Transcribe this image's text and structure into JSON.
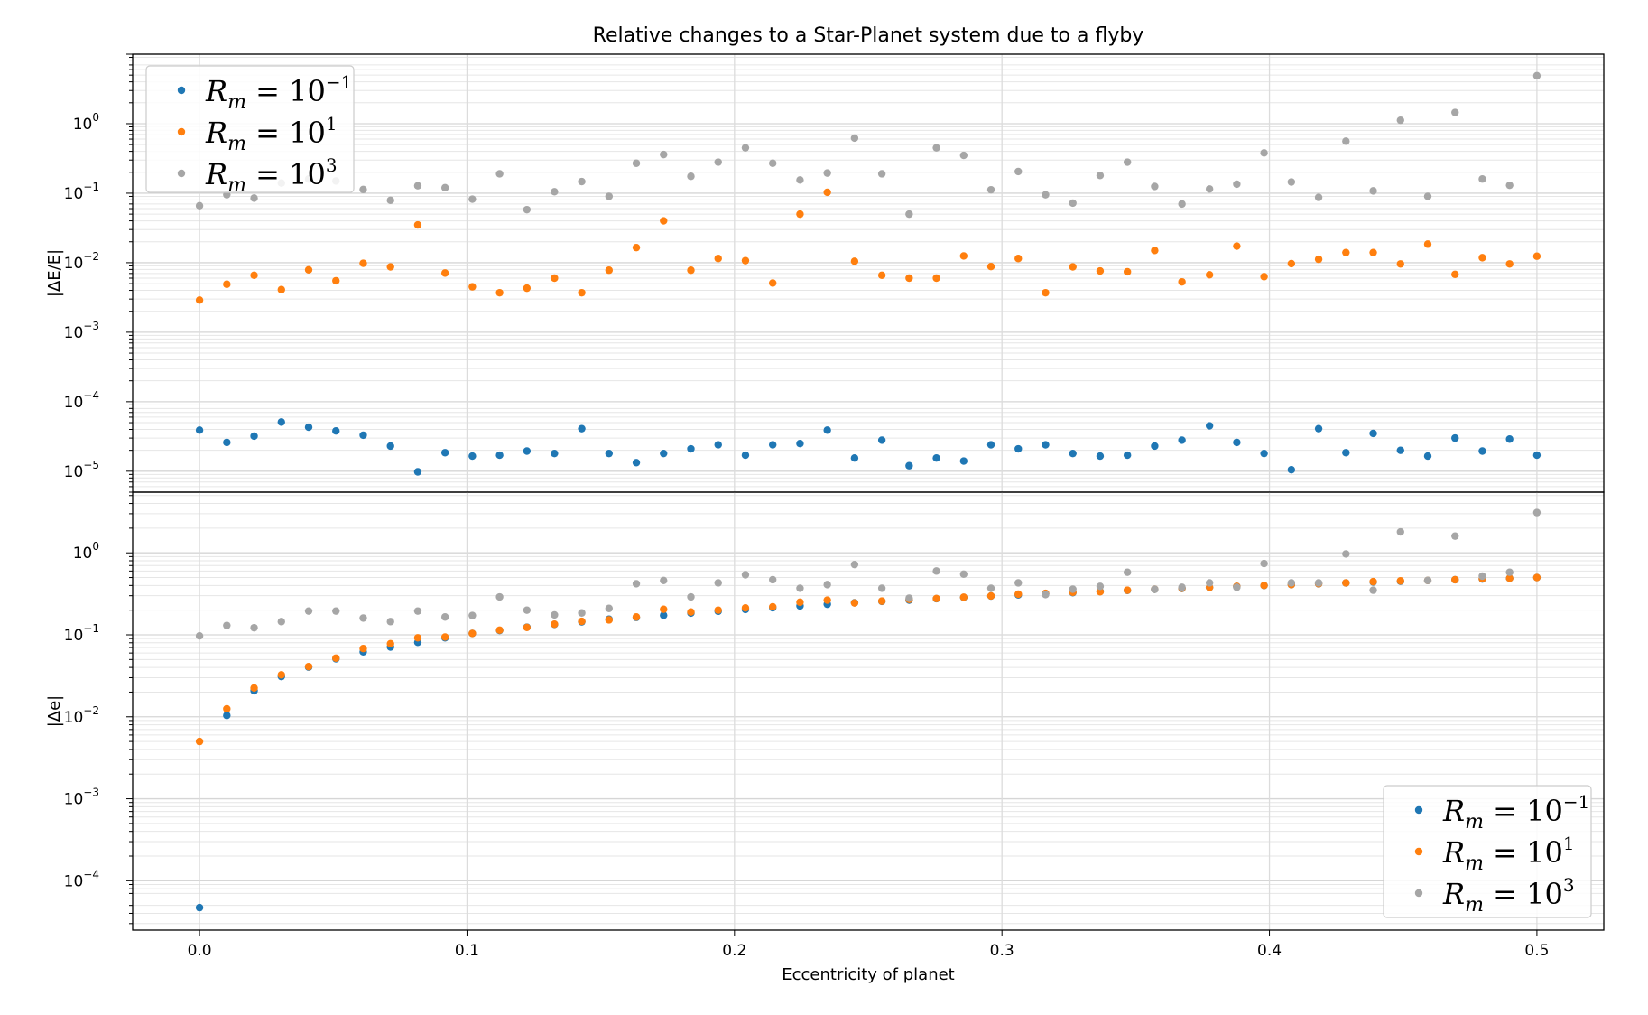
{
  "chart_data": {
    "type": "scatter",
    "title": "Relative changes to a Star-Planet system due to a flyby",
    "xlabel": "Eccentricity of planet",
    "xlim": [
      -0.025,
      0.525
    ],
    "xticks": [
      "0.0",
      "0.1",
      "0.2",
      "0.3",
      "0.4",
      "0.5"
    ],
    "x": [
      0.0,
      0.0102,
      0.0204,
      0.0306,
      0.0408,
      0.051,
      0.0612,
      0.0714,
      0.0816,
      0.0918,
      0.102,
      0.1122,
      0.1224,
      0.1327,
      0.1429,
      0.1531,
      0.1633,
      0.1735,
      0.1837,
      0.1939,
      0.2041,
      0.2143,
      0.2245,
      0.2347,
      0.2449,
      0.2551,
      0.2653,
      0.2755,
      0.2857,
      0.2959,
      0.3061,
      0.3163,
      0.3265,
      0.3367,
      0.3469,
      0.3571,
      0.3673,
      0.3776,
      0.3878,
      0.398,
      0.4082,
      0.4184,
      0.4286,
      0.4388,
      0.449,
      0.4592,
      0.4694,
      0.4796,
      0.4898,
      0.5
    ],
    "panels": [
      {
        "ylabel": "|ΔE/E|",
        "yscale": "log",
        "ylim": [
          5e-06,
          10
        ],
        "yticks": [
          {
            "base": "10",
            "exp": "−5"
          },
          {
            "base": "10",
            "exp": "−4"
          },
          {
            "base": "10",
            "exp": "−3"
          },
          {
            "base": "10",
            "exp": "−2"
          },
          {
            "base": "10",
            "exp": "−1"
          },
          {
            "base": "10",
            "exp": "0"
          }
        ],
        "legend_loc": "upper-left",
        "grid": true,
        "series": [
          {
            "name": "R_m = 10^-1",
            "color": "#1f77b4",
            "values": [
              3.9e-05,
              2.6e-05,
              3.2e-05,
              5.1e-05,
              4.3e-05,
              3.8e-05,
              3.3e-05,
              2.3e-05,
              9.8e-06,
              1.85e-05,
              1.65e-05,
              1.7e-05,
              1.95e-05,
              1.8e-05,
              4.1e-05,
              1.8e-05,
              1.33e-05,
              1.8e-05,
              2.1e-05,
              2.4e-05,
              1.7e-05,
              2.4e-05,
              2.5e-05,
              3.9e-05,
              1.55e-05,
              2.8e-05,
              1.2e-05,
              1.55e-05,
              1.4e-05,
              2.4e-05,
              2.1e-05,
              2.4e-05,
              1.8e-05,
              1.65e-05,
              1.7e-05,
              2.3e-05,
              2.8e-05,
              4.5e-05,
              2.6e-05,
              1.8e-05,
              1.05e-05,
              4.1e-05,
              1.85e-05,
              3.5e-05,
              2e-05,
              1.65e-05,
              3e-05,
              1.95e-05,
              2.9e-05,
              1.7e-05
            ]
          },
          {
            "name": "R_m = 10^1",
            "color": "#ff7f0e",
            "values": [
              0.0029,
              0.0049,
              0.0066,
              0.0041,
              0.0079,
              0.0055,
              0.0098,
              0.0087,
              0.035,
              0.0071,
              0.0045,
              0.0037,
              0.0043,
              0.006,
              0.0037,
              0.0078,
              0.0165,
              0.04,
              0.0078,
              0.0115,
              0.0107,
              0.0051,
              0.05,
              0.103,
              0.0105,
              0.0066,
              0.006,
              0.006,
              0.0125,
              0.0088,
              0.0115,
              0.0037,
              0.0087,
              0.0076,
              0.0074,
              0.015,
              0.0053,
              0.0067,
              0.0173,
              0.0063,
              0.0097,
              0.0112,
              0.014,
              0.014,
              0.0096,
              0.0185,
              0.0068,
              0.0118,
              0.0096,
              0.0124
            ]
          },
          {
            "name": "R_m = 10^3",
            "color": "#a6a6a6",
            "values": [
              0.066,
              0.095,
              0.085,
              0.14,
              0.16,
              0.15,
              0.113,
              0.079,
              0.128,
              0.12,
              0.082,
              0.19,
              0.058,
              0.105,
              0.147,
              0.09,
              0.27,
              0.36,
              0.175,
              0.28,
              0.45,
              0.27,
              0.155,
              0.195,
              0.62,
              0.19,
              0.05,
              0.45,
              0.35,
              0.112,
              0.205,
              0.095,
              0.072,
              0.18,
              0.28,
              0.125,
              0.07,
              0.115,
              0.135,
              0.38,
              0.145,
              0.087,
              0.56,
              0.108,
              1.12,
              0.09,
              1.45,
              0.16,
              0.13,
              4.9
            ]
          }
        ]
      },
      {
        "ylabel": "|Δe|",
        "yscale": "log",
        "ylim": [
          2.5e-05,
          5.5
        ],
        "yticks": [
          {
            "base": "10",
            "exp": "−4"
          },
          {
            "base": "10",
            "exp": "−3"
          },
          {
            "base": "10",
            "exp": "−2"
          },
          {
            "base": "10",
            "exp": "−1"
          },
          {
            "base": "10",
            "exp": "0"
          }
        ],
        "legend_loc": "lower-right",
        "grid": true,
        "series": [
          {
            "name": "R_m = 10^-1",
            "color": "#1f77b4",
            "values": [
              4.7e-05,
              0.0104,
              0.0208,
              0.031,
              0.0404,
              0.051,
              0.062,
              0.071,
              0.081,
              0.092,
              0.104,
              0.113,
              0.124,
              0.134,
              0.144,
              0.155,
              0.163,
              0.173,
              0.184,
              0.194,
              0.204,
              0.214,
              0.225,
              0.236,
              0.246,
              0.256,
              0.265,
              0.276,
              0.286,
              0.297,
              0.307,
              0.317,
              0.327,
              0.338,
              0.348,
              0.358,
              0.368,
              0.378,
              0.389,
              0.399,
              0.409,
              0.419,
              0.429,
              0.44,
              0.45,
              0.46,
              0.47,
              0.48,
              0.49,
              0.5
            ]
          },
          {
            "name": "R_m = 10^1",
            "color": "#ff7f0e",
            "values": [
              0.005,
              0.0125,
              0.0225,
              0.0325,
              0.041,
              0.052,
              0.068,
              0.078,
              0.092,
              0.094,
              0.104,
              0.114,
              0.123,
              0.135,
              0.146,
              0.152,
              0.165,
              0.205,
              0.19,
              0.2,
              0.213,
              0.22,
              0.25,
              0.265,
              0.245,
              0.258,
              0.27,
              0.277,
              0.288,
              0.298,
              0.313,
              0.32,
              0.33,
              0.335,
              0.35,
              0.36,
              0.37,
              0.378,
              0.39,
              0.4,
              0.41,
              0.42,
              0.43,
              0.445,
              0.455,
              0.46,
              0.47,
              0.485,
              0.49,
              0.5
            ]
          },
          {
            "name": "R_m = 10^3",
            "color": "#a6a6a6",
            "values": [
              0.097,
              0.13,
              0.122,
              0.145,
              0.195,
              0.195,
              0.16,
              0.145,
              0.195,
              0.165,
              0.172,
              0.29,
              0.2,
              0.175,
              0.185,
              0.21,
              0.42,
              0.46,
              0.29,
              0.43,
              0.54,
              0.47,
              0.37,
              0.41,
              0.72,
              0.37,
              0.28,
              0.6,
              0.55,
              0.37,
              0.43,
              0.31,
              0.36,
              0.39,
              0.58,
              0.36,
              0.38,
              0.43,
              0.38,
              0.74,
              0.43,
              0.43,
              0.97,
              0.35,
              1.8,
              0.46,
              1.6,
              0.52,
              0.58,
              3.1
            ]
          }
        ]
      }
    ]
  }
}
